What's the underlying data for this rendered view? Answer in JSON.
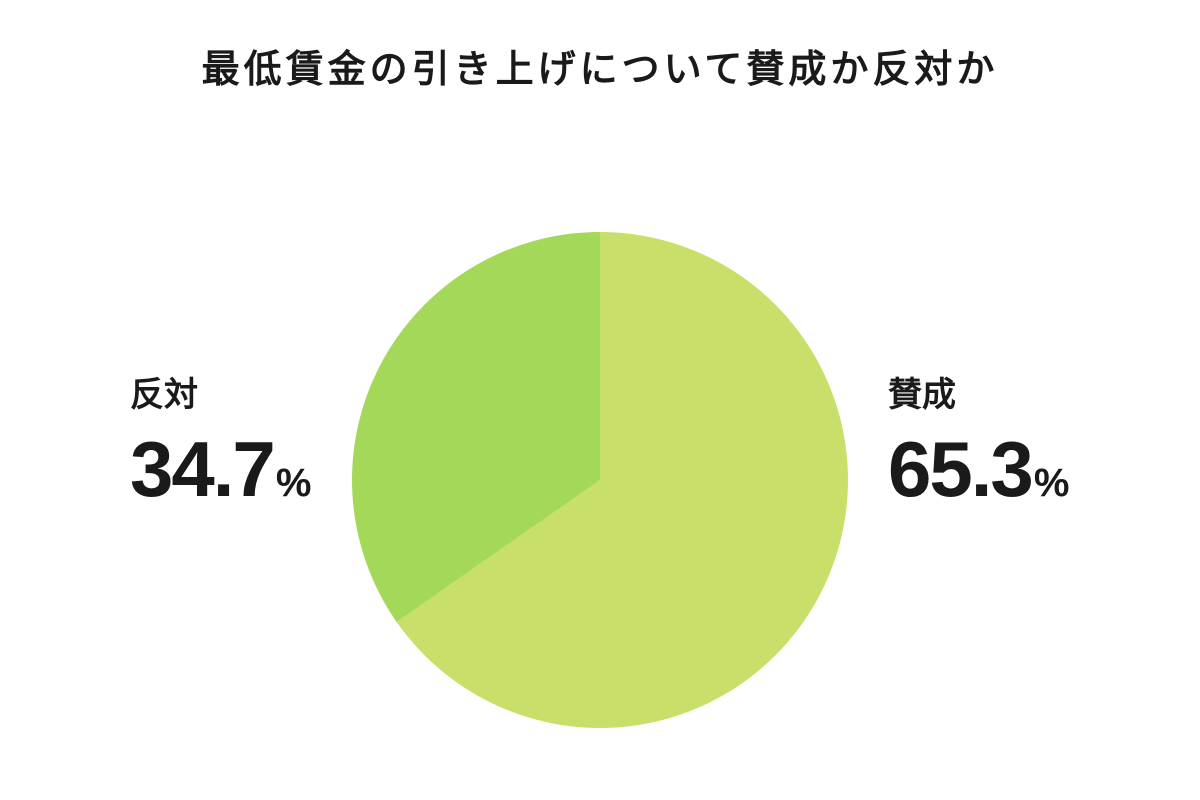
{
  "chart_data": {
    "type": "pie",
    "title": "最低賃金の引き上げについて賛成か反対か",
    "slices": [
      {
        "label": "賛成",
        "value": 65.3,
        "unit": "%",
        "color": "#c8e06a"
      },
      {
        "label": "反対",
        "value": 34.7,
        "unit": "%",
        "color": "#a3d858"
      }
    ],
    "start_angle": "12 o'clock",
    "direction": "clockwise",
    "legend": "none"
  }
}
